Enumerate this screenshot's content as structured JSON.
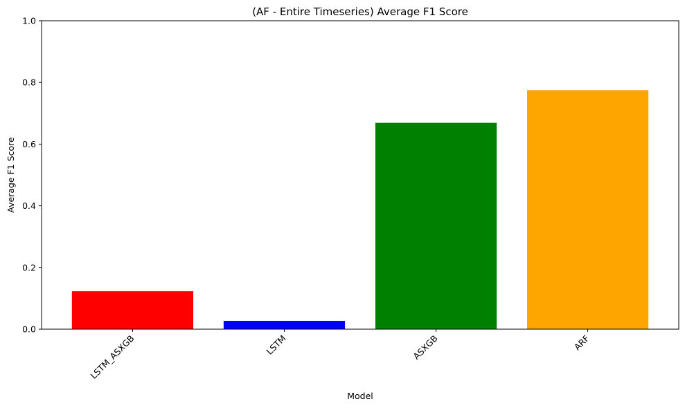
{
  "chart_data": {
    "type": "bar",
    "title": "(AF - Entire Timeseries) Average F1 Score",
    "xlabel": "Model",
    "ylabel": "Average F1 Score",
    "categories": [
      "LSTM_ASXGB",
      "LSTM",
      "ASXGB",
      "ARF"
    ],
    "values": [
      0.123,
      0.027,
      0.669,
      0.775
    ],
    "colors": [
      "#ff0000",
      "#0000ff",
      "#008000",
      "#ffa500"
    ],
    "ylim": [
      0,
      1.0
    ],
    "yticks": [
      "0.0",
      "0.2",
      "0.4",
      "0.6",
      "0.8",
      "1.0"
    ],
    "grid": false,
    "xtick_rotation": "45 degrees"
  }
}
